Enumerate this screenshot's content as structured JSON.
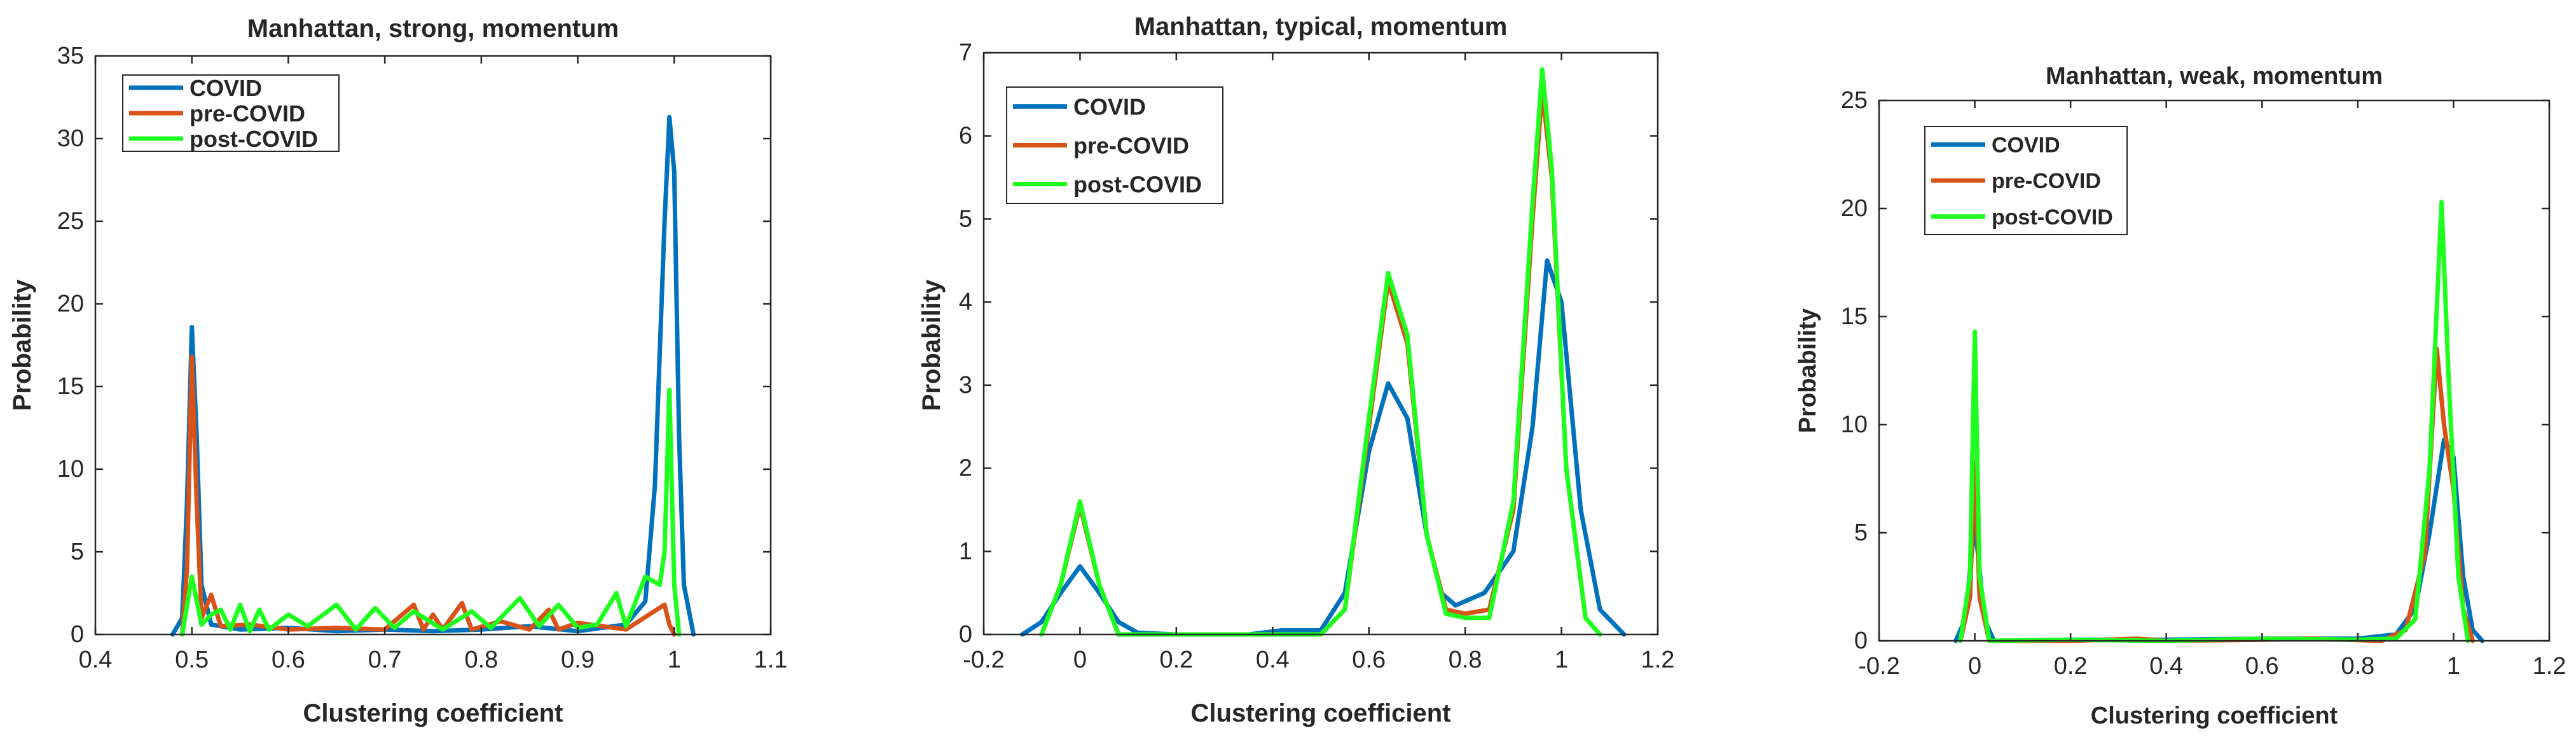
{
  "colors": {
    "COVID": "#0072BD",
    "pre-COVID": "#D95319",
    "post-COVID": "#1FFF1F",
    "axis": "#262626"
  },
  "chart_data": [
    {
      "type": "line",
      "title": "Manhattan, strong, momentum",
      "xlabel": "Clustering coefficient",
      "ylabel": "Probability",
      "xlim": [
        0.4,
        1.1
      ],
      "ylim": [
        0,
        35
      ],
      "xticks": [
        "0.4",
        "0.5",
        "0.6",
        "0.7",
        "0.8",
        "0.9",
        "1",
        "1.1"
      ],
      "yticks": [
        "0",
        "5",
        "10",
        "15",
        "20",
        "25",
        "30",
        "35"
      ],
      "legend": [
        "COVID",
        "pre-COVID",
        "post-COVID"
      ],
      "series": [
        {
          "name": "COVID",
          "points": [
            [
              0.48,
              0
            ],
            [
              0.49,
              1
            ],
            [
              0.495,
              8
            ],
            [
              0.5,
              18.6
            ],
            [
              0.505,
              12
            ],
            [
              0.51,
              3
            ],
            [
              0.52,
              0.6
            ],
            [
              0.55,
              0.3
            ],
            [
              0.6,
              0.4
            ],
            [
              0.65,
              0.2
            ],
            [
              0.7,
              0.3
            ],
            [
              0.75,
              0.2
            ],
            [
              0.8,
              0.3
            ],
            [
              0.85,
              0.5
            ],
            [
              0.9,
              0.2
            ],
            [
              0.95,
              0.6
            ],
            [
              0.97,
              2
            ],
            [
              0.98,
              9
            ],
            [
              0.99,
              25
            ],
            [
              0.995,
              31.3
            ],
            [
              1.0,
              28
            ],
            [
              1.005,
              12
            ],
            [
              1.01,
              3
            ],
            [
              1.02,
              0
            ]
          ]
        },
        {
          "name": "pre-COVID",
          "points": [
            [
              0.49,
              0
            ],
            [
              0.495,
              4
            ],
            [
              0.5,
              16.8
            ],
            [
              0.505,
              8
            ],
            [
              0.51,
              1
            ],
            [
              0.52,
              2.4
            ],
            [
              0.53,
              0.5
            ],
            [
              0.56,
              0.6
            ],
            [
              0.6,
              0.3
            ],
            [
              0.65,
              0.4
            ],
            [
              0.7,
              0.3
            ],
            [
              0.73,
              1.8
            ],
            [
              0.74,
              0.3
            ],
            [
              0.75,
              1.2
            ],
            [
              0.76,
              0.3
            ],
            [
              0.78,
              1.9
            ],
            [
              0.79,
              0.3
            ],
            [
              0.82,
              0.8
            ],
            [
              0.85,
              0.3
            ],
            [
              0.87,
              1.5
            ],
            [
              0.88,
              0.3
            ],
            [
              0.9,
              0.7
            ],
            [
              0.95,
              0.3
            ],
            [
              0.99,
              1.8
            ],
            [
              0.995,
              0.6
            ],
            [
              1.0,
              0
            ]
          ]
        },
        {
          "name": "post-COVID",
          "points": [
            [
              0.49,
              0
            ],
            [
              0.5,
              3.5
            ],
            [
              0.51,
              0.6
            ],
            [
              0.52,
              1.2
            ],
            [
              0.53,
              1.5
            ],
            [
              0.54,
              0.3
            ],
            [
              0.55,
              1.8
            ],
            [
              0.56,
              0.2
            ],
            [
              0.57,
              1.5
            ],
            [
              0.58,
              0.3
            ],
            [
              0.6,
              1.2
            ],
            [
              0.62,
              0.5
            ],
            [
              0.65,
              1.8
            ],
            [
              0.67,
              0.3
            ],
            [
              0.69,
              1.6
            ],
            [
              0.71,
              0.4
            ],
            [
              0.73,
              1.4
            ],
            [
              0.76,
              0.3
            ],
            [
              0.79,
              1.4
            ],
            [
              0.81,
              0.4
            ],
            [
              0.84,
              2.2
            ],
            [
              0.86,
              0.5
            ],
            [
              0.88,
              1.8
            ],
            [
              0.9,
              0.4
            ],
            [
              0.92,
              0.6
            ],
            [
              0.94,
              2.5
            ],
            [
              0.95,
              0.5
            ],
            [
              0.97,
              3.5
            ],
            [
              0.985,
              3
            ],
            [
              0.99,
              5
            ],
            [
              0.995,
              14.8
            ],
            [
              1.0,
              3
            ],
            [
              1.005,
              0
            ]
          ]
        }
      ]
    },
    {
      "type": "line",
      "title": "Manhattan, typical, momentum",
      "xlabel": "Clustering coefficient",
      "ylabel": "Probability",
      "xlim": [
        -0.2,
        1.2
      ],
      "ylim": [
        0,
        7
      ],
      "xticks": [
        "-0.2",
        "0",
        "0.2",
        "0.4",
        "0.6",
        "0.8",
        "1",
        "1.2"
      ],
      "yticks": [
        "0",
        "1",
        "2",
        "3",
        "4",
        "5",
        "6",
        "7"
      ],
      "legend": [
        "COVID",
        "pre-COVID",
        "post-COVID"
      ],
      "series": [
        {
          "name": "COVID",
          "points": [
            [
              -0.12,
              0
            ],
            [
              -0.08,
              0.15
            ],
            [
              -0.04,
              0.5
            ],
            [
              0,
              0.82
            ],
            [
              0.04,
              0.5
            ],
            [
              0.08,
              0.15
            ],
            [
              0.12,
              0.02
            ],
            [
              0.2,
              0
            ],
            [
              0.35,
              0
            ],
            [
              0.42,
              0.05
            ],
            [
              0.5,
              0.05
            ],
            [
              0.55,
              0.5
            ],
            [
              0.6,
              2.2
            ],
            [
              0.64,
              3.02
            ],
            [
              0.68,
              2.6
            ],
            [
              0.72,
              1.2
            ],
            [
              0.75,
              0.5
            ],
            [
              0.78,
              0.35
            ],
            [
              0.84,
              0.5
            ],
            [
              0.9,
              1.0
            ],
            [
              0.94,
              2.5
            ],
            [
              0.97,
              4.5
            ],
            [
              1.0,
              4.0
            ],
            [
              1.04,
              1.5
            ],
            [
              1.08,
              0.3
            ],
            [
              1.13,
              0
            ]
          ]
        },
        {
          "name": "pre-COVID",
          "points": [
            [
              -0.08,
              0
            ],
            [
              -0.04,
              0.6
            ],
            [
              0,
              1.55
            ],
            [
              0.04,
              0.6
            ],
            [
              0.08,
              0
            ],
            [
              0.2,
              0
            ],
            [
              0.5,
              0
            ],
            [
              0.55,
              0.3
            ],
            [
              0.6,
              2.5
            ],
            [
              0.64,
              4.25
            ],
            [
              0.68,
              3.5
            ],
            [
              0.72,
              1.2
            ],
            [
              0.76,
              0.3
            ],
            [
              0.8,
              0.25
            ],
            [
              0.85,
              0.3
            ],
            [
              0.9,
              1.5
            ],
            [
              0.94,
              5.0
            ],
            [
              0.96,
              6.55
            ],
            [
              0.98,
              5.5
            ],
            [
              1.01,
              2.0
            ],
            [
              1.05,
              0.2
            ],
            [
              1.08,
              0
            ]
          ]
        },
        {
          "name": "post-COVID",
          "points": [
            [
              -0.08,
              0
            ],
            [
              -0.04,
              0.6
            ],
            [
              0,
              1.6
            ],
            [
              0.04,
              0.6
            ],
            [
              0.08,
              0
            ],
            [
              0.2,
              0
            ],
            [
              0.5,
              0
            ],
            [
              0.55,
              0.3
            ],
            [
              0.6,
              2.6
            ],
            [
              0.64,
              4.35
            ],
            [
              0.68,
              3.6
            ],
            [
              0.72,
              1.2
            ],
            [
              0.76,
              0.25
            ],
            [
              0.8,
              0.2
            ],
            [
              0.85,
              0.2
            ],
            [
              0.9,
              1.6
            ],
            [
              0.94,
              5.2
            ],
            [
              0.96,
              6.8
            ],
            [
              0.98,
              5.6
            ],
            [
              1.01,
              2.0
            ],
            [
              1.05,
              0.2
            ],
            [
              1.08,
              0
            ]
          ]
        }
      ]
    },
    {
      "type": "line",
      "title": "Manhattan, weak, momentum",
      "xlabel": "Clustering coefficient",
      "ylabel": "Probability",
      "xlim": [
        -0.2,
        1.2
      ],
      "ylim": [
        0,
        25
      ],
      "xticks": [
        "-0.2",
        "0",
        "0.2",
        "0.4",
        "0.6",
        "0.8",
        "1",
        "1.2"
      ],
      "yticks": [
        "0",
        "5",
        "10",
        "15",
        "20",
        "25"
      ],
      "legend": [
        "COVID",
        "pre-COVID",
        "post-COVID"
      ],
      "series": [
        {
          "name": "COVID",
          "points": [
            [
              -0.04,
              0
            ],
            [
              -0.02,
              1
            ],
            [
              0,
              5.5
            ],
            [
              0.02,
              1
            ],
            [
              0.04,
              0
            ],
            [
              0.2,
              0.05
            ],
            [
              0.4,
              0.05
            ],
            [
              0.6,
              0.1
            ],
            [
              0.8,
              0.1
            ],
            [
              0.88,
              0.3
            ],
            [
              0.92,
              1.5
            ],
            [
              0.95,
              5
            ],
            [
              0.98,
              9.3
            ],
            [
              1.0,
              8.5
            ],
            [
              1.02,
              3
            ],
            [
              1.04,
              0.5
            ],
            [
              1.06,
              0
            ]
          ]
        },
        {
          "name": "pre-COVID",
          "points": [
            [
              -0.03,
              0
            ],
            [
              -0.01,
              2
            ],
            [
              0,
              8.3
            ],
            [
              0.01,
              2
            ],
            [
              0.03,
              0
            ],
            [
              0.2,
              0
            ],
            [
              0.34,
              0.1
            ],
            [
              0.4,
              0
            ],
            [
              0.6,
              0.05
            ],
            [
              0.7,
              0.1
            ],
            [
              0.85,
              0
            ],
            [
              0.9,
              0.5
            ],
            [
              0.94,
              4
            ],
            [
              0.965,
              13.5
            ],
            [
              0.98,
              10
            ],
            [
              1.0,
              7
            ],
            [
              1.02,
              1.5
            ],
            [
              1.04,
              0
            ]
          ]
        },
        {
          "name": "post-COVID",
          "points": [
            [
              -0.03,
              0
            ],
            [
              -0.01,
              3
            ],
            [
              0,
              14.3
            ],
            [
              0.01,
              3
            ],
            [
              0.03,
              0
            ],
            [
              0.2,
              0.05
            ],
            [
              0.4,
              0
            ],
            [
              0.6,
              0.1
            ],
            [
              0.8,
              0.05
            ],
            [
              0.88,
              0.1
            ],
            [
              0.92,
              1
            ],
            [
              0.95,
              8
            ],
            [
              0.975,
              20.3
            ],
            [
              0.99,
              12
            ],
            [
              1.01,
              3
            ],
            [
              1.03,
              0
            ]
          ]
        }
      ]
    }
  ]
}
